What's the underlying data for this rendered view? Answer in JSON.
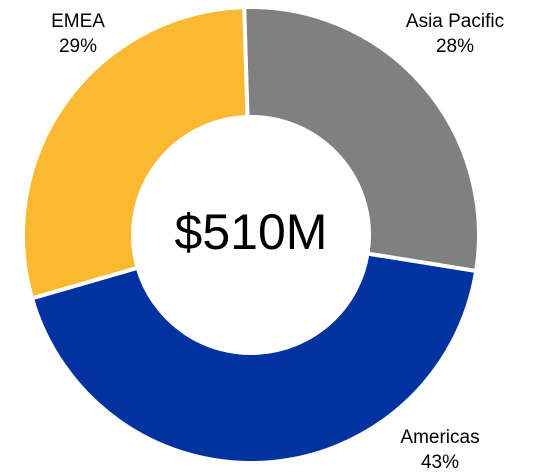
{
  "chart_data": {
    "type": "donut",
    "center_label": "$510M",
    "categories": [
      "Asia Pacific",
      "Americas",
      "EMEA"
    ],
    "values": [
      28,
      43,
      29
    ],
    "value_labels": [
      "28%",
      "43%",
      "29%"
    ],
    "colors": [
      "#808080",
      "#0033a0",
      "#fbb831"
    ]
  }
}
